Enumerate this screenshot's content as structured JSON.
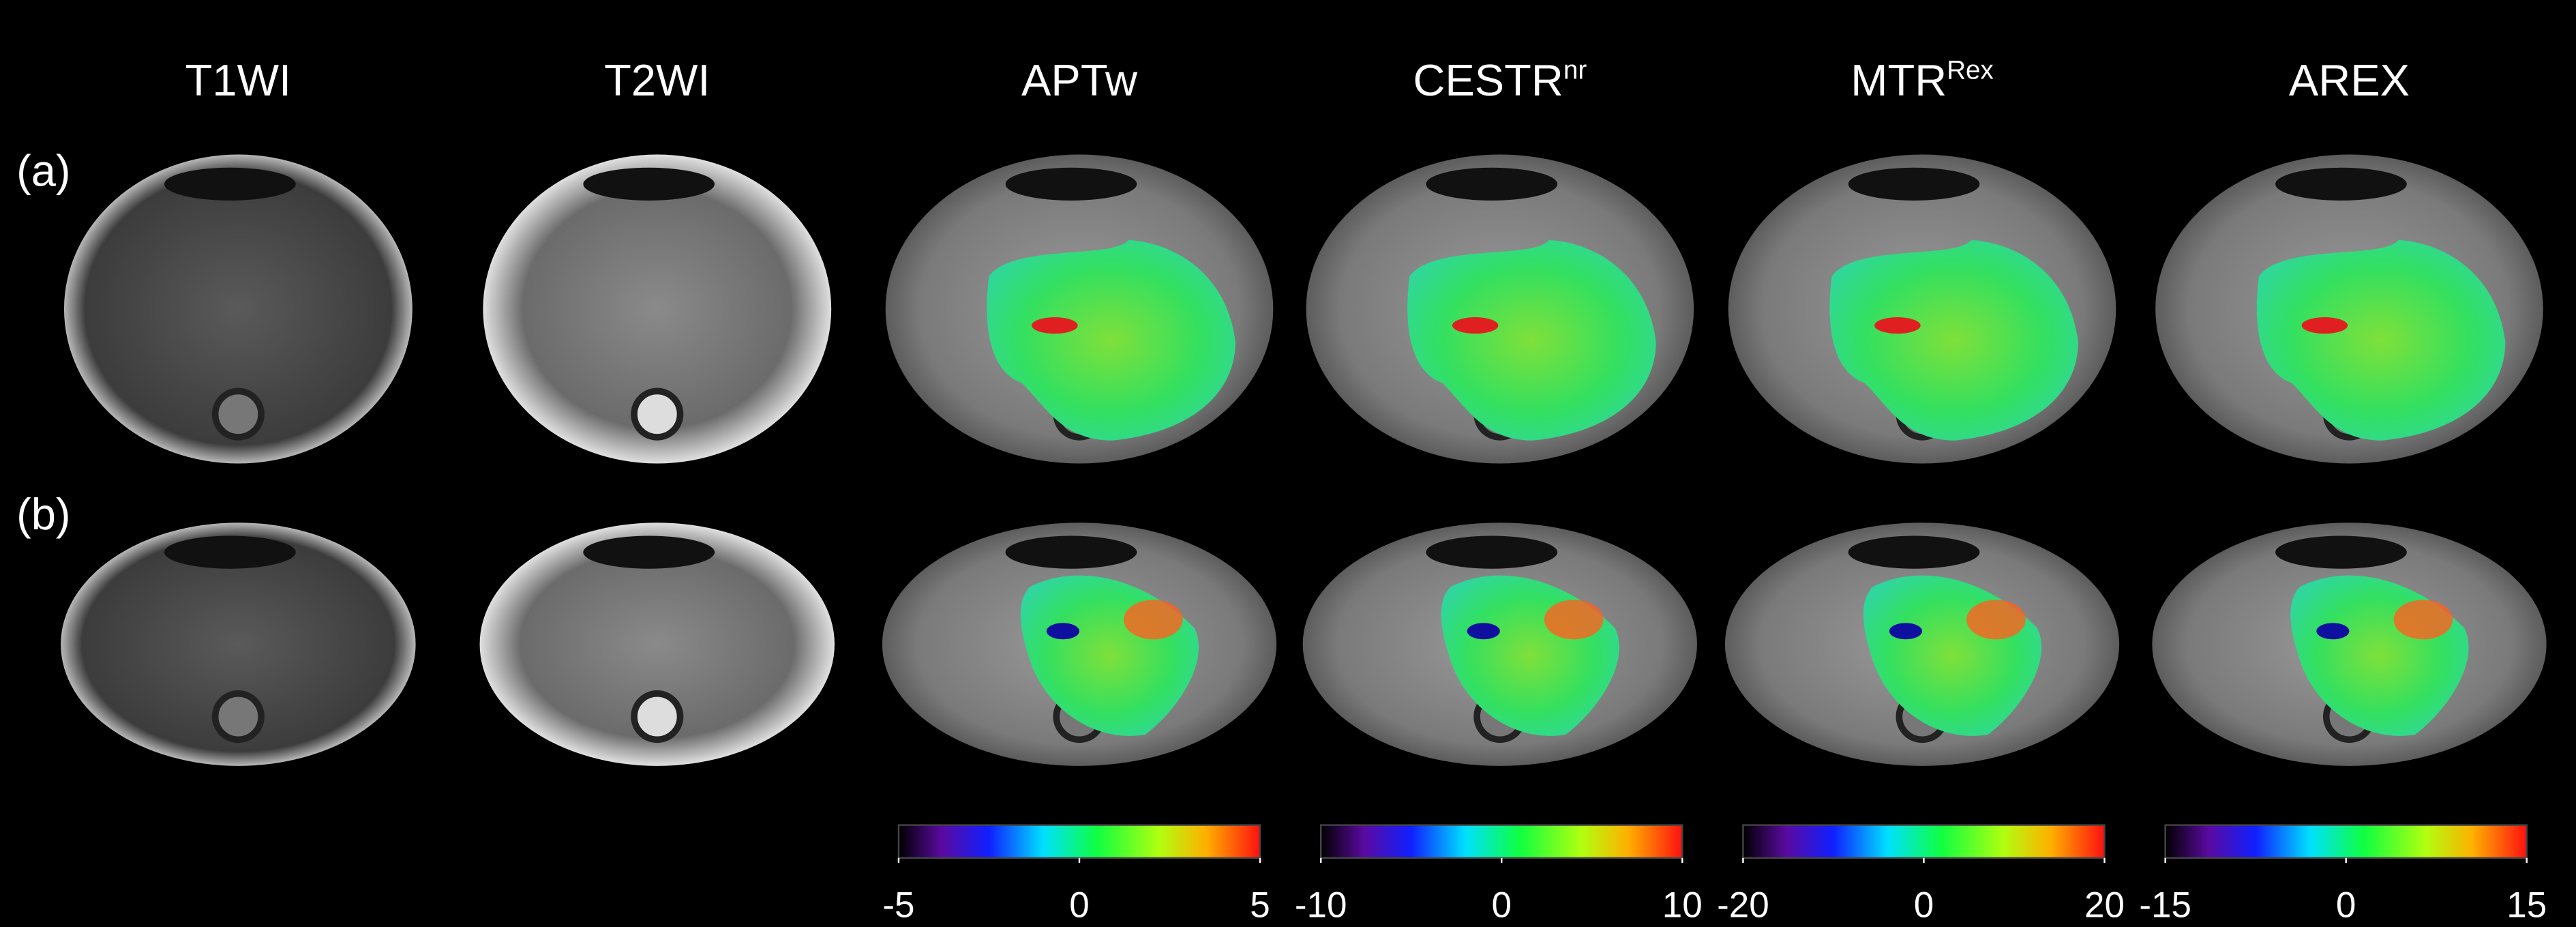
{
  "columns": [
    {
      "text": "T1WI"
    },
    {
      "text": "T2WI"
    },
    {
      "text": "APTw"
    },
    {
      "text": "CESTR",
      "sup": "nr"
    },
    {
      "text": "MTR",
      "sup": "Rex"
    },
    {
      "text": "AREX"
    }
  ],
  "rows": [
    "(a)",
    "(b)"
  ],
  "colorbars": [
    {
      "ticks": [
        -5,
        0,
        5
      ]
    },
    {
      "ticks": [
        -10,
        0,
        10
      ]
    },
    {
      "ticks": [
        -20,
        0,
        20
      ]
    },
    {
      "ticks": [
        -15,
        0,
        15
      ]
    }
  ]
}
